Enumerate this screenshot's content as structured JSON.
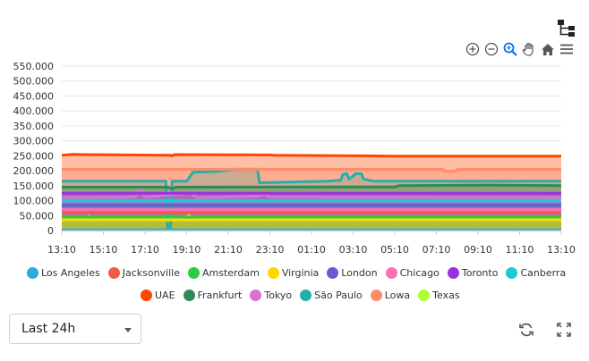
{
  "icons": {
    "tree": "tree-structure-icon",
    "zoom_in": "zoom-in-icon",
    "zoom_out": "zoom-out-icon",
    "selection_zoom": "selection-zoom-icon",
    "pan": "pan-hand-icon",
    "reset": "home-icon",
    "menu": "hamburger-menu-icon",
    "refresh": "refresh-icon",
    "fullscreen": "fullscreen-icon"
  },
  "time_range": {
    "selected": "Last 24h"
  },
  "chart_data": {
    "type": "area",
    "stacked": false,
    "ylim": [
      0,
      550000
    ],
    "yticks": [
      "550.000",
      "500.000",
      "450.000",
      "400.000",
      "350.000",
      "300.000",
      "250.000",
      "200.000",
      "150.000",
      "100.000",
      "50.000",
      "0"
    ],
    "xticks": [
      "13:10",
      "15:10",
      "17:10",
      "19:10",
      "21:10",
      "23:10",
      "01:10",
      "03:10",
      "05:10",
      "07:10",
      "09:10",
      "11:10",
      "13:10"
    ],
    "grid": true,
    "legend_position": "bottom",
    "series": [
      {
        "name": "Los Angeles",
        "color": "#2eaadc",
        "points": [
          [
            0,
            2000
          ],
          [
            24,
            2000
          ]
        ]
      },
      {
        "name": "Jacksonville",
        "color": "#f25a48",
        "points": [
          [
            0,
            60000
          ],
          [
            24,
            60000
          ]
        ]
      },
      {
        "name": "Amsterdam",
        "color": "#2ecc40",
        "points": [
          [
            0,
            45000
          ],
          [
            24,
            45000
          ]
        ]
      },
      {
        "name": "Virginia",
        "color": "#ffd700",
        "points": [
          [
            0,
            35000
          ],
          [
            24,
            35000
          ]
        ]
      },
      {
        "name": "London",
        "color": "#6a5acd",
        "points": [
          [
            0,
            85000
          ],
          [
            24,
            85000
          ]
        ]
      },
      {
        "name": "Chicago",
        "color": "#ff6fb5",
        "points": [
          [
            0,
            70000
          ],
          [
            24,
            70000
          ]
        ]
      },
      {
        "name": "Toronto",
        "color": "#9b30e0",
        "points": [
          [
            0,
            125000
          ],
          [
            24,
            125000
          ]
        ]
      },
      {
        "name": "Canberra",
        "color": "#1cc9d6",
        "points": [
          [
            0,
            100000
          ],
          [
            24,
            100000
          ]
        ]
      },
      {
        "name": "UAE",
        "color": "#ff4500",
        "points": [
          [
            0,
            252000
          ],
          [
            0.5,
            255000
          ],
          [
            1,
            254000
          ],
          [
            5.2,
            252000
          ],
          [
            5.3,
            250000
          ],
          [
            5.4,
            254000
          ],
          [
            10,
            253000
          ],
          [
            10.2,
            252000
          ],
          [
            14.5,
            250000
          ],
          [
            16,
            249000
          ],
          [
            24,
            249000
          ]
        ]
      },
      {
        "name": "Frankfurt",
        "color": "#2e8b57",
        "points": [
          [
            0,
            145000
          ],
          [
            5.1,
            145000
          ],
          [
            5.3,
            140000
          ],
          [
            5.5,
            145000
          ],
          [
            16,
            146000
          ],
          [
            16.2,
            150000
          ],
          [
            20.5,
            152000
          ],
          [
            24,
            150000
          ]
        ]
      },
      {
        "name": "Tokyo",
        "color": "#da70d6",
        "points": [
          [
            0,
            110000
          ],
          [
            3.5,
            112000
          ],
          [
            3.8,
            135000
          ],
          [
            4,
            112000
          ],
          [
            6.2,
            125000
          ],
          [
            6.5,
            110000
          ],
          [
            9.5,
            115000
          ],
          [
            9.7,
            122000
          ],
          [
            10,
            112000
          ],
          [
            24,
            110000
          ]
        ]
      },
      {
        "name": "São Paulo",
        "color": "#20b2aa",
        "points": [
          [
            0,
            165000
          ],
          [
            5.0,
            165000
          ],
          [
            5.08,
            10000
          ],
          [
            5.22,
            10000
          ],
          [
            5.3,
            165000
          ],
          [
            6.0,
            165000
          ],
          [
            6.3,
            195000
          ],
          [
            7.5,
            198000
          ],
          [
            8.0,
            202000
          ],
          [
            8.5,
            205000
          ],
          [
            9.4,
            205000
          ],
          [
            9.5,
            160000
          ],
          [
            12.8,
            165000
          ],
          [
            13.4,
            168000
          ],
          [
            13.5,
            188000
          ],
          [
            13.7,
            190000
          ],
          [
            13.8,
            172000
          ],
          [
            14.0,
            182000
          ],
          [
            14.1,
            190000
          ],
          [
            14.4,
            190000
          ],
          [
            14.5,
            172000
          ],
          [
            15.0,
            165000
          ],
          [
            18.0,
            165000
          ],
          [
            24,
            165000
          ]
        ]
      },
      {
        "name": "Lowa",
        "color": "#ff8c69",
        "points": [
          [
            0,
            205000
          ],
          [
            18.3,
            205000
          ],
          [
            18.4,
            198000
          ],
          [
            18.9,
            198000
          ],
          [
            19.0,
            205000
          ],
          [
            24,
            205000
          ]
        ]
      },
      {
        "name": "Texas",
        "color": "#adff2f",
        "points": [
          [
            0,
            40000
          ],
          [
            1.2,
            40000
          ],
          [
            1.3,
            48000
          ],
          [
            1.5,
            40000
          ],
          [
            5.8,
            40000
          ],
          [
            6.1,
            50000
          ],
          [
            6.4,
            40000
          ],
          [
            24,
            40000
          ]
        ]
      }
    ]
  }
}
